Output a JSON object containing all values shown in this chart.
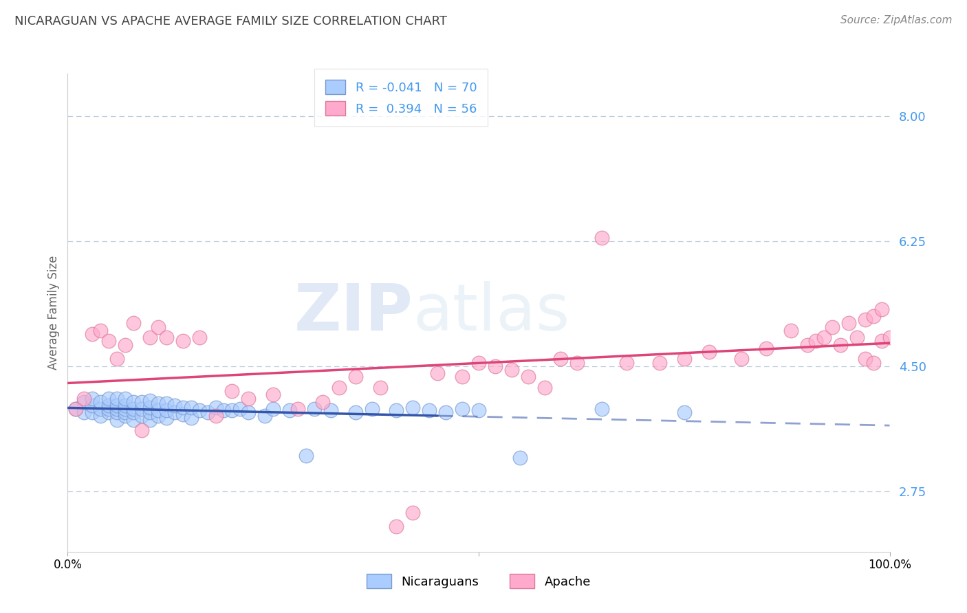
{
  "title": "NICARAGUAN VS APACHE AVERAGE FAMILY SIZE CORRELATION CHART",
  "source_text": "Source: ZipAtlas.com",
  "ylabel": "Average Family Size",
  "xlim": [
    0.0,
    1.0
  ],
  "ylim": [
    1.9,
    8.6
  ],
  "yticks": [
    2.75,
    4.5,
    6.25,
    8.0
  ],
  "ytick_labels": [
    "2.75",
    "4.50",
    "6.25",
    "8.00"
  ],
  "blue_R": -0.041,
  "blue_N": 70,
  "pink_R": 0.394,
  "pink_N": 56,
  "blue_fill_color": "#AACCFF",
  "pink_fill_color": "#FFAACC",
  "blue_edge_color": "#7799CC",
  "pink_edge_color": "#DD7799",
  "blue_line_color": "#3355AA",
  "pink_line_color": "#DD4477",
  "legend_label_blue": "Nicaraguans",
  "legend_label_pink": "Apache",
  "watermark_text": "ZIPatlas",
  "background_color": "#FFFFFF",
  "grid_color": "#BBCCDD",
  "tick_label_color": "#4499EE",
  "blue_x": [
    0.01,
    0.02,
    0.02,
    0.03,
    0.03,
    0.03,
    0.04,
    0.04,
    0.04,
    0.05,
    0.05,
    0.05,
    0.05,
    0.06,
    0.06,
    0.06,
    0.06,
    0.06,
    0.07,
    0.07,
    0.07,
    0.07,
    0.07,
    0.08,
    0.08,
    0.08,
    0.08,
    0.09,
    0.09,
    0.09,
    0.1,
    0.1,
    0.1,
    0.1,
    0.11,
    0.11,
    0.11,
    0.12,
    0.12,
    0.12,
    0.13,
    0.13,
    0.14,
    0.14,
    0.15,
    0.15,
    0.16,
    0.17,
    0.18,
    0.19,
    0.2,
    0.21,
    0.22,
    0.24,
    0.25,
    0.27,
    0.29,
    0.3,
    0.32,
    0.35,
    0.37,
    0.4,
    0.42,
    0.44,
    0.46,
    0.48,
    0.5,
    0.55,
    0.65,
    0.75
  ],
  "blue_y": [
    3.9,
    3.85,
    4.0,
    3.85,
    3.95,
    4.05,
    3.8,
    3.9,
    4.0,
    3.85,
    3.9,
    3.95,
    4.05,
    3.75,
    3.85,
    3.9,
    3.95,
    4.05,
    3.8,
    3.85,
    3.9,
    3.95,
    4.05,
    3.75,
    3.85,
    3.9,
    4.0,
    3.8,
    3.9,
    4.0,
    3.75,
    3.85,
    3.92,
    4.02,
    3.8,
    3.88,
    3.98,
    3.78,
    3.88,
    3.98,
    3.85,
    3.95,
    3.82,
    3.92,
    3.78,
    3.92,
    3.88,
    3.85,
    3.92,
    3.88,
    3.88,
    3.9,
    3.85,
    3.8,
    3.9,
    3.88,
    3.25,
    3.9,
    3.88,
    3.85,
    3.9,
    3.88,
    3.92,
    3.88,
    3.85,
    3.9,
    3.88,
    3.22,
    3.9,
    3.85
  ],
  "pink_x": [
    0.01,
    0.02,
    0.03,
    0.04,
    0.05,
    0.06,
    0.07,
    0.08,
    0.09,
    0.1,
    0.11,
    0.12,
    0.14,
    0.16,
    0.18,
    0.2,
    0.22,
    0.25,
    0.28,
    0.31,
    0.33,
    0.35,
    0.38,
    0.4,
    0.42,
    0.45,
    0.48,
    0.5,
    0.52,
    0.54,
    0.56,
    0.58,
    0.6,
    0.62,
    0.65,
    0.68,
    0.72,
    0.75,
    0.78,
    0.82,
    0.85,
    0.88,
    0.9,
    0.91,
    0.92,
    0.93,
    0.94,
    0.95,
    0.96,
    0.97,
    0.97,
    0.98,
    0.98,
    0.99,
    0.99,
    1.0
  ],
  "pink_y": [
    3.9,
    4.05,
    4.95,
    5.0,
    4.85,
    4.6,
    4.8,
    5.1,
    3.6,
    4.9,
    5.05,
    4.9,
    4.85,
    4.9,
    3.8,
    4.15,
    4.05,
    4.1,
    3.9,
    4.0,
    4.2,
    4.35,
    4.2,
    2.25,
    2.45,
    4.4,
    4.35,
    4.55,
    4.5,
    4.45,
    4.35,
    4.2,
    4.6,
    4.55,
    6.3,
    4.55,
    4.55,
    4.6,
    4.7,
    4.6,
    4.75,
    5.0,
    4.8,
    4.85,
    4.9,
    5.05,
    4.8,
    5.1,
    4.9,
    5.15,
    4.6,
    4.55,
    5.2,
    5.3,
    4.85,
    4.9
  ]
}
